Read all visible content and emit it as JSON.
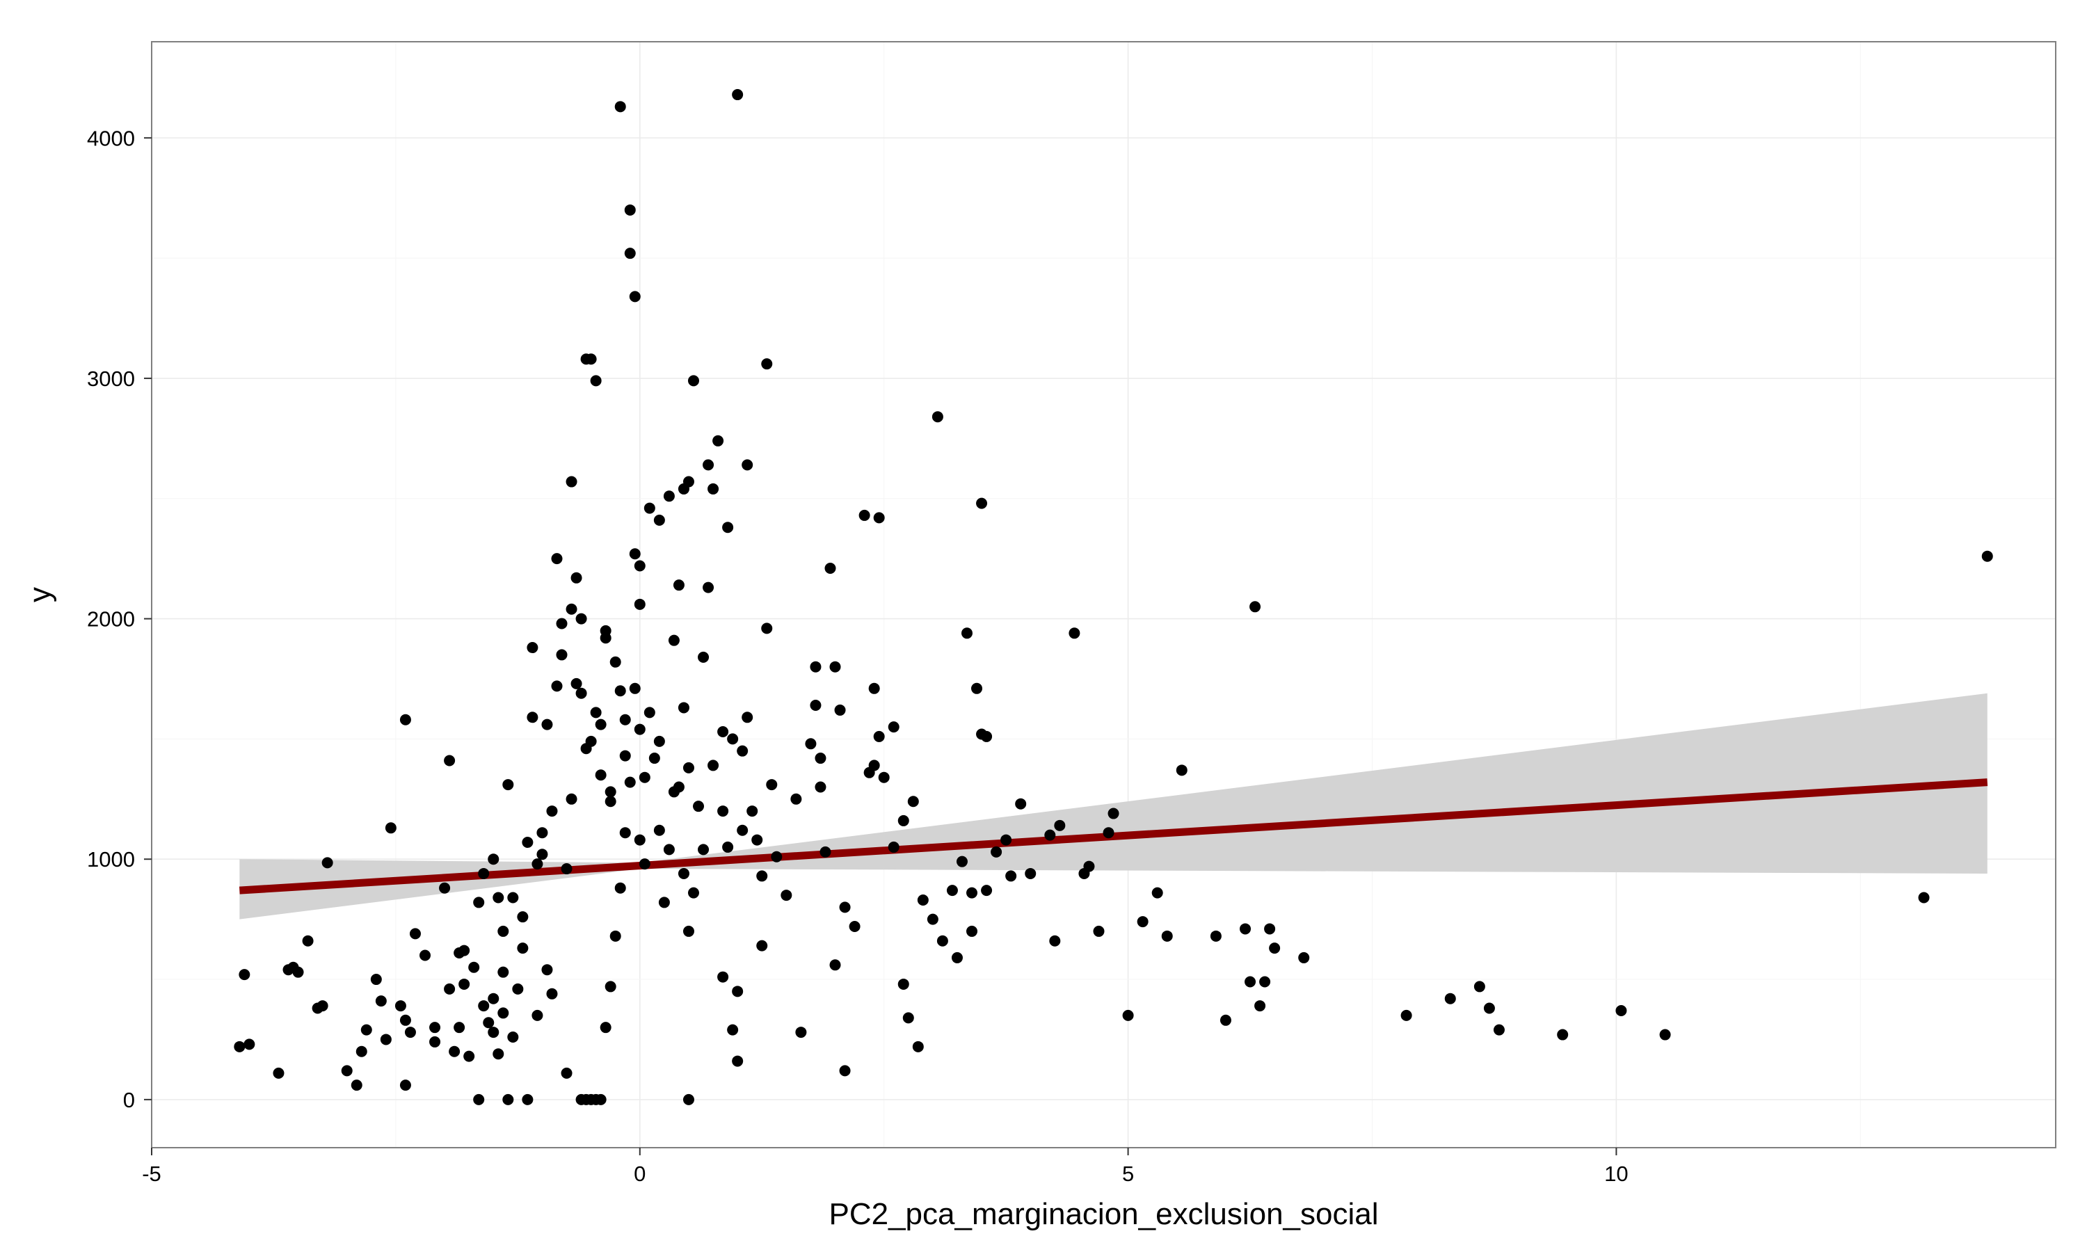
{
  "chart_data": {
    "type": "scatter",
    "title": "",
    "xlabel": "PC2_pca_marginacion_exclusion_social",
    "ylabel": "y",
    "xlim": [
      -5,
      14.5
    ],
    "ylim": [
      -200,
      4400
    ],
    "x_ticks": [
      -5,
      0,
      5,
      10
    ],
    "y_ticks": [
      0,
      1000,
      2000,
      3000,
      4000
    ],
    "grid": true,
    "legend": "none",
    "colors": {
      "points": "#000000",
      "fit_line": "#8B0000",
      "confidence_band": "#D3D3D3",
      "panel_border": "#7F7F7F",
      "grid_major": "#EBEBEB",
      "grid_minor": "#F5F5F5"
    },
    "series": [
      {
        "type": "scatter",
        "points": [
          [
            -4.1,
            220
          ],
          [
            -4.05,
            520
          ],
          [
            -4.0,
            230
          ],
          [
            -3.7,
            110
          ],
          [
            -3.6,
            540
          ],
          [
            -3.55,
            550
          ],
          [
            -3.5,
            530
          ],
          [
            -3.4,
            660
          ],
          [
            -3.3,
            380
          ],
          [
            -3.25,
            390
          ],
          [
            -3.2,
            985
          ],
          [
            -3.0,
            120
          ],
          [
            -2.9,
            60
          ],
          [
            -2.85,
            200
          ],
          [
            -2.8,
            290
          ],
          [
            -2.7,
            500
          ],
          [
            -2.65,
            410
          ],
          [
            -2.6,
            250
          ],
          [
            -2.55,
            1130
          ],
          [
            -2.45,
            390
          ],
          [
            -2.4,
            330
          ],
          [
            -2.35,
            280
          ],
          [
            -2.4,
            60
          ],
          [
            -2.4,
            1580
          ],
          [
            -2.3,
            690
          ],
          [
            -2.2,
            600
          ],
          [
            -2.1,
            300
          ],
          [
            -2.1,
            240
          ],
          [
            -2.0,
            880
          ],
          [
            -1.95,
            1410
          ],
          [
            -1.95,
            460
          ],
          [
            -1.9,
            200
          ],
          [
            -1.85,
            300
          ],
          [
            -1.85,
            610
          ],
          [
            -1.8,
            480
          ],
          [
            -1.75,
            180
          ],
          [
            -1.8,
            620
          ],
          [
            -1.7,
            550
          ],
          [
            -1.65,
            820
          ],
          [
            -1.65,
            0
          ],
          [
            -1.6,
            940
          ],
          [
            -1.6,
            390
          ],
          [
            -1.55,
            320
          ],
          [
            -1.5,
            1000
          ],
          [
            -1.5,
            280
          ],
          [
            -1.5,
            420
          ],
          [
            -1.45,
            840
          ],
          [
            -1.45,
            190
          ],
          [
            -1.4,
            530
          ],
          [
            -1.4,
            700
          ],
          [
            -1.4,
            360
          ],
          [
            -1.35,
            0
          ],
          [
            -1.35,
            1310
          ],
          [
            -1.3,
            840
          ],
          [
            -1.3,
            260
          ],
          [
            -1.25,
            460
          ],
          [
            -1.2,
            630
          ],
          [
            -1.2,
            760
          ],
          [
            -1.15,
            1070
          ],
          [
            -1.15,
            0
          ],
          [
            -1.1,
            1880
          ],
          [
            -1.1,
            1590
          ],
          [
            -1.05,
            350
          ],
          [
            -1.05,
            980
          ],
          [
            -1.0,
            1110
          ],
          [
            -1.0,
            1020
          ],
          [
            -0.95,
            540
          ],
          [
            -0.95,
            1560
          ],
          [
            -0.9,
            440
          ],
          [
            -0.9,
            1200
          ],
          [
            -0.85,
            1720
          ],
          [
            -0.85,
            2250
          ],
          [
            -0.8,
            1980
          ],
          [
            -0.8,
            1850
          ],
          [
            -0.75,
            110
          ],
          [
            -0.75,
            960
          ],
          [
            -0.7,
            2040
          ],
          [
            -0.7,
            1250
          ],
          [
            -0.7,
            2570
          ],
          [
            -0.65,
            1730
          ],
          [
            -0.65,
            2170
          ],
          [
            -0.6,
            2000
          ],
          [
            -0.6,
            1690
          ],
          [
            -0.55,
            1460
          ],
          [
            -0.55,
            3080
          ],
          [
            -0.5,
            3080
          ],
          [
            -0.5,
            1490
          ],
          [
            -0.45,
            2990
          ],
          [
            -0.45,
            1610
          ],
          [
            -0.4,
            1350
          ],
          [
            -0.4,
            1560
          ],
          [
            -0.35,
            1920
          ],
          [
            -0.35,
            1950
          ],
          [
            -0.3,
            1280
          ],
          [
            -0.3,
            1240
          ],
          [
            -0.25,
            1820
          ],
          [
            -0.2,
            4130
          ],
          [
            -0.2,
            1700
          ],
          [
            -0.15,
            1580
          ],
          [
            -0.15,
            1430
          ],
          [
            -0.1,
            3700
          ],
          [
            -0.1,
            3520
          ],
          [
            -0.05,
            3340
          ],
          [
            -0.05,
            2270
          ],
          [
            0.0,
            2220
          ],
          [
            0.0,
            2060
          ],
          [
            -0.05,
            1710
          ],
          [
            0.0,
            1540
          ],
          [
            -0.1,
            1320
          ],
          [
            -0.15,
            1110
          ],
          [
            -0.2,
            880
          ],
          [
            -0.25,
            680
          ],
          [
            -0.3,
            470
          ],
          [
            -0.35,
            300
          ],
          [
            -0.4,
            0
          ],
          [
            -0.45,
            0
          ],
          [
            -0.5,
            0
          ],
          [
            -0.55,
            0
          ],
          [
            -0.6,
            0
          ],
          [
            0.0,
            1080
          ],
          [
            0.05,
            1340
          ],
          [
            0.05,
            980
          ],
          [
            0.1,
            2460
          ],
          [
            0.1,
            1610
          ],
          [
            0.15,
            1420
          ],
          [
            0.2,
            2410
          ],
          [
            0.2,
            1490
          ],
          [
            0.2,
            1120
          ],
          [
            0.25,
            820
          ],
          [
            0.3,
            2510
          ],
          [
            0.3,
            1040
          ],
          [
            0.35,
            1910
          ],
          [
            0.35,
            1280
          ],
          [
            0.4,
            2140
          ],
          [
            0.4,
            1300
          ],
          [
            0.45,
            2540
          ],
          [
            0.45,
            1630
          ],
          [
            0.45,
            940
          ],
          [
            0.5,
            2570
          ],
          [
            0.5,
            1380
          ],
          [
            0.5,
            700
          ],
          [
            0.5,
            0
          ],
          [
            0.55,
            2990
          ],
          [
            0.55,
            860
          ],
          [
            0.6,
            1220
          ],
          [
            0.65,
            1840
          ],
          [
            0.65,
            1040
          ],
          [
            0.7,
            2640
          ],
          [
            0.7,
            2130
          ],
          [
            0.75,
            2540
          ],
          [
            0.75,
            1390
          ],
          [
            0.8,
            2740
          ],
          [
            0.85,
            1530
          ],
          [
            0.85,
            1200
          ],
          [
            0.85,
            510
          ],
          [
            0.9,
            2380
          ],
          [
            0.9,
            1050
          ],
          [
            0.95,
            1500
          ],
          [
            0.95,
            290
          ],
          [
            1.0,
            4180
          ],
          [
            1.0,
            450
          ],
          [
            1.0,
            160
          ],
          [
            1.05,
            1450
          ],
          [
            1.05,
            1120
          ],
          [
            1.1,
            2640
          ],
          [
            1.1,
            1590
          ],
          [
            1.15,
            1200
          ],
          [
            1.2,
            1080
          ],
          [
            1.25,
            930
          ],
          [
            1.25,
            640
          ],
          [
            1.3,
            3060
          ],
          [
            1.3,
            1960
          ],
          [
            1.35,
            1310
          ],
          [
            1.4,
            1010
          ],
          [
            1.5,
            850
          ],
          [
            1.6,
            1250
          ],
          [
            1.65,
            280
          ],
          [
            1.75,
            1480
          ],
          [
            1.8,
            1800
          ],
          [
            1.8,
            1640
          ],
          [
            1.85,
            1420
          ],
          [
            1.85,
            1300
          ],
          [
            1.9,
            1030
          ],
          [
            1.95,
            2210
          ],
          [
            2.0,
            1800
          ],
          [
            2.0,
            560
          ],
          [
            2.05,
            1620
          ],
          [
            2.1,
            800
          ],
          [
            2.1,
            120
          ],
          [
            2.2,
            720
          ],
          [
            2.3,
            2430
          ],
          [
            2.35,
            1360
          ],
          [
            2.4,
            1710
          ],
          [
            2.4,
            1390
          ],
          [
            2.45,
            2420
          ],
          [
            2.45,
            1510
          ],
          [
            2.5,
            1340
          ],
          [
            2.6,
            1550
          ],
          [
            2.6,
            1050
          ],
          [
            2.7,
            1160
          ],
          [
            2.7,
            480
          ],
          [
            2.75,
            340
          ],
          [
            2.8,
            1240
          ],
          [
            2.85,
            220
          ],
          [
            2.9,
            830
          ],
          [
            3.0,
            750
          ],
          [
            3.05,
            2840
          ],
          [
            3.1,
            660
          ],
          [
            3.2,
            870
          ],
          [
            3.25,
            590
          ],
          [
            3.3,
            990
          ],
          [
            3.35,
            1940
          ],
          [
            3.4,
            860
          ],
          [
            3.4,
            700
          ],
          [
            3.45,
            1710
          ],
          [
            3.5,
            2480
          ],
          [
            3.5,
            1520
          ],
          [
            3.55,
            1510
          ],
          [
            3.55,
            870
          ],
          [
            3.65,
            1030
          ],
          [
            3.75,
            1080
          ],
          [
            3.8,
            930
          ],
          [
            3.9,
            1230
          ],
          [
            4.0,
            940
          ],
          [
            4.2,
            1100
          ],
          [
            4.25,
            660
          ],
          [
            4.3,
            1140
          ],
          [
            4.45,
            1940
          ],
          [
            4.55,
            940
          ],
          [
            4.6,
            970
          ],
          [
            4.7,
            700
          ],
          [
            4.8,
            1110
          ],
          [
            4.85,
            1190
          ],
          [
            5.0,
            350
          ],
          [
            5.15,
            740
          ],
          [
            5.3,
            860
          ],
          [
            5.4,
            680
          ],
          [
            5.55,
            1370
          ],
          [
            5.9,
            680
          ],
          [
            6.0,
            330
          ],
          [
            6.2,
            710
          ],
          [
            6.25,
            490
          ],
          [
            6.3,
            2050
          ],
          [
            6.35,
            390
          ],
          [
            6.4,
            490
          ],
          [
            6.45,
            710
          ],
          [
            6.5,
            630
          ],
          [
            6.8,
            590
          ],
          [
            7.85,
            350
          ],
          [
            8.3,
            420
          ],
          [
            8.6,
            470
          ],
          [
            8.7,
            380
          ],
          [
            8.8,
            290
          ],
          [
            9.45,
            270
          ],
          [
            10.05,
            370
          ],
          [
            10.5,
            270
          ],
          [
            13.15,
            840
          ],
          [
            13.8,
            2260
          ]
        ]
      }
    ],
    "fit_line": {
      "x": [
        -4.1,
        13.8
      ],
      "y": [
        870,
        1320
      ]
    },
    "confidence_band": {
      "x": [
        -4.1,
        0.0,
        13.8
      ],
      "lower": [
        750,
        960,
        940
      ],
      "upper": [
        1000,
        985,
        1690
      ]
    }
  }
}
